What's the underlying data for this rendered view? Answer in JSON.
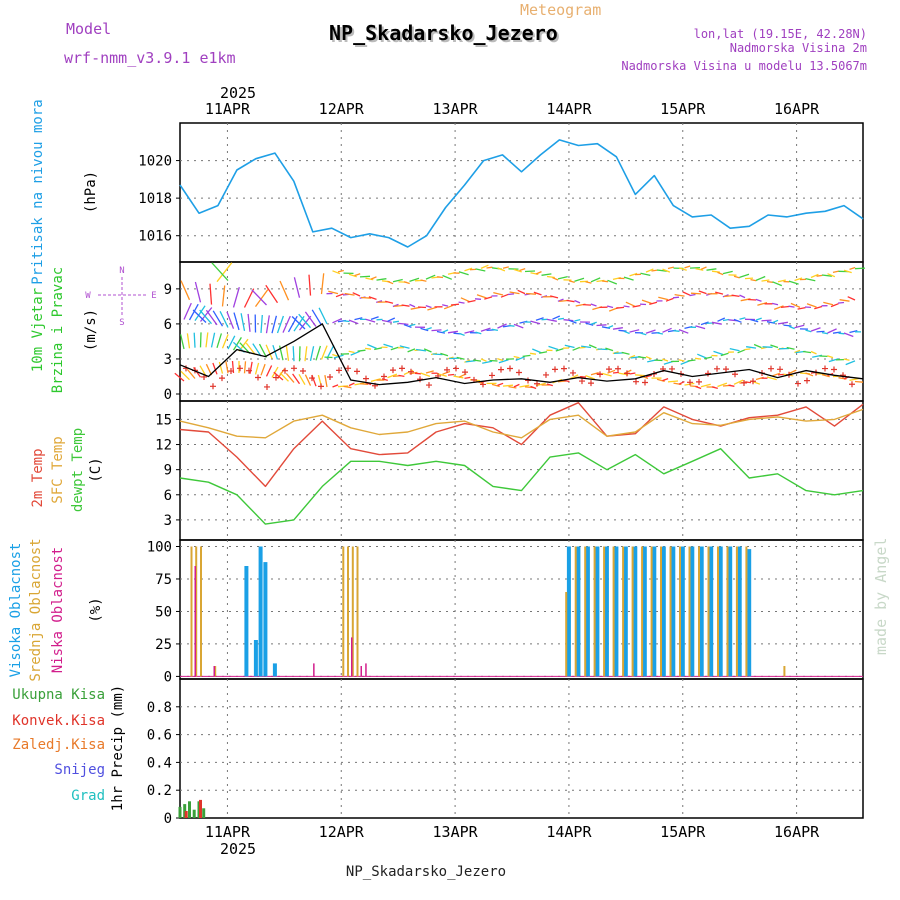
{
  "header": {
    "model_label": "Model",
    "model_value": "wrf-nmm_v3.9.1 e1km",
    "product": "Meteogram",
    "station": "NP_Skadarsko_Jezero",
    "coords": "lon,lat (19.15E, 42.28N)",
    "elevation": "Nadmorska Visina 2m",
    "model_elevation": "Nadmorska Visina u modelu 13.5067m",
    "year": "2025",
    "footer_station": "NP_Skadarsko_Jezero",
    "credit": "made by Angel"
  },
  "colors": {
    "pressure": "#1e9fe6",
    "wind_speed": "#000000",
    "gust": "#e0342a",
    "temp_2m": "#e24a3a",
    "temp_sfc": "#e0a83a",
    "dewpoint": "#3ec83a",
    "cloud_high": "#1aa0e6",
    "cloud_mid": "#d9a634",
    "cloud_low": "#d21e8c",
    "precip_total": "#3aa03a",
    "precip_conv": "#e0342a",
    "precip_froz": "#e87a2a",
    "snow": "#5050e0",
    "hail": "#20c0c0",
    "compass": "#b050d0",
    "title_orange": "#e8b070",
    "title_purple": "#a040c0",
    "credit": "#c8d8c8"
  },
  "x_axis": {
    "start": "2025-04-10T14:00",
    "end": "2025-04-16T14:00",
    "ticks": [
      {
        "date": "2025-04-11",
        "label": "11APR"
      },
      {
        "date": "2025-04-12",
        "label": "12APR"
      },
      {
        "date": "2025-04-13",
        "label": "13APR"
      },
      {
        "date": "2025-04-14",
        "label": "14APR"
      },
      {
        "date": "2025-04-15",
        "label": "15APR"
      },
      {
        "date": "2025-04-16",
        "label": "16APR"
      }
    ]
  },
  "panels": {
    "pressure": {
      "labels": [
        "Pritisak na nivou mora"
      ],
      "unit": "(hPa)",
      "ylim": [
        1014.6,
        1022.0
      ],
      "yticks": [
        1016,
        1018,
        1020
      ]
    },
    "wind": {
      "labels": [
        "10m Vjetar",
        "Brzina i Pravac"
      ],
      "unit": "(m/s)",
      "ylim": [
        -0.6,
        11.3
      ],
      "yticks": [
        0,
        3,
        6,
        9
      ],
      "compass": {
        "n": "N",
        "s": "S",
        "e": "E",
        "w": "W"
      }
    },
    "temp": {
      "labels": [
        "2m Temp",
        "SFC Temp",
        "dewpt Temp"
      ],
      "unit": "(C)",
      "ylim": [
        0.6,
        17.2
      ],
      "yticks": [
        3,
        6,
        9,
        12,
        15
      ]
    },
    "cloud": {
      "labels": [
        "Visoka Oblacnost",
        "Srednja Oblacnost",
        "Niska Oblacnost"
      ],
      "unit": "(%)",
      "ylim": [
        -2,
        105
      ],
      "yticks": [
        0,
        25,
        50,
        75,
        100
      ]
    },
    "precip": {
      "labels": [
        "Ukupna Kisa",
        "Konvek.Kisa",
        "Zaledj.Kisa",
        "Snijeg",
        "Grad"
      ],
      "unit": "1hr Precip (mm)",
      "ylim": [
        0,
        1.0
      ],
      "yticks": [
        0,
        0.2,
        0.4,
        0.6,
        0.8
      ]
    }
  },
  "chart_data": [
    {
      "type": "line",
      "panel": "pressure",
      "ylabel": "Pritisak na nivou mora (hPa)",
      "x": [
        "2025-04-10T14:00",
        "2025-04-10T18:00",
        "2025-04-10T22:00",
        "2025-04-11T02:00",
        "2025-04-11T06:00",
        "2025-04-11T10:00",
        "2025-04-11T14:00",
        "2025-04-11T18:00",
        "2025-04-11T22:00",
        "2025-04-12T02:00",
        "2025-04-12T06:00",
        "2025-04-12T10:00",
        "2025-04-12T14:00",
        "2025-04-12T18:00",
        "2025-04-12T22:00",
        "2025-04-13T02:00",
        "2025-04-13T06:00",
        "2025-04-13T10:00",
        "2025-04-13T14:00",
        "2025-04-13T18:00",
        "2025-04-13T22:00",
        "2025-04-14T02:00",
        "2025-04-14T06:00",
        "2025-04-14T10:00",
        "2025-04-14T14:00",
        "2025-04-14T18:00",
        "2025-04-14T22:00",
        "2025-04-15T02:00",
        "2025-04-15T06:00",
        "2025-04-15T10:00",
        "2025-04-15T14:00",
        "2025-04-15T18:00",
        "2025-04-15T22:00",
        "2025-04-16T02:00",
        "2025-04-16T06:00",
        "2025-04-16T10:00",
        "2025-04-16T14:00"
      ],
      "series": [
        {
          "values": [
            1018.7,
            1017.2,
            1017.6,
            1019.5,
            1020.1,
            1020.4,
            1018.9,
            1016.2,
            1016.4,
            1015.9,
            1016.1,
            1015.9,
            1015.4,
            1016.0,
            1017.5,
            1018.7,
            1020.0,
            1020.3,
            1019.4,
            1020.3,
            1021.1,
            1020.8,
            1020.9,
            1020.2,
            1018.2,
            1019.2,
            1017.6,
            1017.0,
            1017.1,
            1016.4,
            1016.5,
            1017.1,
            1017.0,
            1017.2,
            1017.3,
            1017.6,
            1016.9
          ]
        }
      ]
    },
    {
      "type": "line",
      "panel": "wind",
      "ylabel": "10m Vjetar Brzina i Pravac (m/s)",
      "x": [
        "2025-04-10T14:00",
        "2025-04-10T20:00",
        "2025-04-11T02:00",
        "2025-04-11T08:00",
        "2025-04-11T14:00",
        "2025-04-11T20:00",
        "2025-04-12T02:00",
        "2025-04-12T08:00",
        "2025-04-12T14:00",
        "2025-04-12T20:00",
        "2025-04-13T02:00",
        "2025-04-13T08:00",
        "2025-04-13T14:00",
        "2025-04-13T20:00",
        "2025-04-14T02:00",
        "2025-04-14T08:00",
        "2025-04-14T14:00",
        "2025-04-14T20:00",
        "2025-04-15T02:00",
        "2025-04-15T08:00",
        "2025-04-15T14:00",
        "2025-04-15T20:00",
        "2025-04-16T02:00",
        "2025-04-16T08:00",
        "2025-04-16T14:00"
      ],
      "series": [
        {
          "name": "speed",
          "values": [
            2.5,
            1.5,
            3.8,
            3.2,
            4.5,
            6.0,
            1.2,
            0.8,
            1.0,
            1.4,
            0.9,
            1.2,
            1.3,
            1.0,
            1.4,
            1.1,
            1.3,
            2.0,
            1.5,
            1.8,
            2.1,
            1.4,
            2.0,
            1.6,
            1.3
          ]
        }
      ]
    },
    {
      "type": "line",
      "panel": "temp",
      "ylabel": "(C)",
      "x": [
        "2025-04-10T14:00",
        "2025-04-10T20:00",
        "2025-04-11T02:00",
        "2025-04-11T08:00",
        "2025-04-11T14:00",
        "2025-04-11T20:00",
        "2025-04-12T02:00",
        "2025-04-12T08:00",
        "2025-04-12T14:00",
        "2025-04-12T20:00",
        "2025-04-13T02:00",
        "2025-04-13T08:00",
        "2025-04-13T14:00",
        "2025-04-13T20:00",
        "2025-04-14T02:00",
        "2025-04-14T08:00",
        "2025-04-14T14:00",
        "2025-04-14T20:00",
        "2025-04-15T02:00",
        "2025-04-15T08:00",
        "2025-04-15T14:00",
        "2025-04-15T20:00",
        "2025-04-16T02:00",
        "2025-04-16T08:00",
        "2025-04-16T14:00"
      ],
      "series": [
        {
          "name": "2m Temp",
          "values": [
            13.8,
            13.5,
            10.5,
            7.0,
            11.5,
            14.8,
            11.5,
            10.8,
            11.0,
            13.5,
            14.5,
            14.0,
            12.0,
            15.5,
            17.0,
            13.0,
            13.3,
            16.5,
            15.0,
            14.2,
            15.2,
            15.5,
            16.5,
            14.2,
            16.8
          ]
        },
        {
          "name": "SFC Temp",
          "values": [
            14.8,
            14.0,
            13.0,
            12.8,
            14.8,
            15.5,
            14.0,
            13.2,
            13.5,
            14.5,
            14.8,
            13.5,
            12.8,
            15.0,
            15.5,
            13.0,
            13.5,
            15.8,
            14.5,
            14.3,
            15.0,
            15.3,
            14.8,
            15.0,
            16.2
          ]
        },
        {
          "name": "dewpt Temp",
          "values": [
            8.0,
            7.5,
            6.0,
            2.5,
            3.0,
            7.0,
            10.0,
            10.0,
            9.5,
            10.0,
            9.5,
            7.0,
            6.5,
            10.5,
            11.0,
            9.0,
            10.8,
            8.5,
            10.0,
            11.5,
            8.0,
            8.5,
            6.5,
            6.0,
            6.5
          ]
        }
      ]
    },
    {
      "type": "bar",
      "panel": "cloud",
      "ylabel": "(%)",
      "series": [
        {
          "name": "Visoka Oblacnost",
          "x": [
            "2025-04-11T04:00",
            "2025-04-11T06:00",
            "2025-04-11T07:00",
            "2025-04-11T08:00",
            "2025-04-11T10:00",
            "2025-04-14T00:00",
            "2025-04-14T02:00",
            "2025-04-14T04:00",
            "2025-04-14T06:00",
            "2025-04-14T08:00",
            "2025-04-14T10:00",
            "2025-04-14T12:00",
            "2025-04-14T14:00",
            "2025-04-14T16:00",
            "2025-04-14T18:00",
            "2025-04-14T20:00",
            "2025-04-14T22:00",
            "2025-04-15T00:00",
            "2025-04-15T02:00",
            "2025-04-15T04:00",
            "2025-04-15T06:00",
            "2025-04-15T08:00",
            "2025-04-15T10:00",
            "2025-04-15T12:00",
            "2025-04-15T14:00"
          ],
          "values": [
            85,
            28,
            100,
            88,
            10,
            100,
            100,
            100,
            100,
            100,
            100,
            100,
            100,
            100,
            100,
            100,
            100,
            100,
            100,
            100,
            100,
            100,
            100,
            100,
            98
          ]
        },
        {
          "name": "Srednja Oblacnost",
          "x": [
            "2025-04-10T16:00",
            "2025-04-10T17:00",
            "2025-04-10T18:00",
            "2025-04-10T21:00",
            "2025-04-12T00:00",
            "2025-04-12T01:00",
            "2025-04-12T02:00",
            "2025-04-12T03:00",
            "2025-04-13T23:00",
            "2025-04-14T01:00",
            "2025-04-14T03:00",
            "2025-04-14T05:00",
            "2025-04-14T07:00",
            "2025-04-14T09:00",
            "2025-04-14T11:00",
            "2025-04-14T13:00",
            "2025-04-14T15:00",
            "2025-04-14T17:00",
            "2025-04-14T19:00",
            "2025-04-14T21:00",
            "2025-04-14T23:00",
            "2025-04-15T01:00",
            "2025-04-15T03:00",
            "2025-04-15T05:00",
            "2025-04-15T07:00",
            "2025-04-15T09:00",
            "2025-04-15T11:00",
            "2025-04-15T13:00",
            "2025-04-15T21:00"
          ],
          "values": [
            100,
            100,
            100,
            8,
            100,
            100,
            100,
            100,
            65,
            100,
            100,
            100,
            100,
            100,
            100,
            100,
            100,
            100,
            100,
            100,
            100,
            100,
            100,
            100,
            100,
            100,
            100,
            100,
            8
          ]
        },
        {
          "name": "Niska Oblacnost",
          "x": [
            "2025-04-10T17:00",
            "2025-04-10T21:00",
            "2025-04-11T18:00",
            "2025-04-12T02:00",
            "2025-04-12T04:00",
            "2025-04-12T05:00"
          ],
          "values": [
            85,
            8,
            10,
            30,
            8,
            10
          ]
        }
      ]
    },
    {
      "type": "bar",
      "panel": "precip",
      "ylabel": "1hr Precip (mm)",
      "series": [
        {
          "name": "Ukupna Kisa",
          "x": [
            "2025-04-10T14:00",
            "2025-04-10T15:00",
            "2025-04-10T16:00",
            "2025-04-10T17:00",
            "2025-04-10T18:00",
            "2025-04-10T19:00"
          ],
          "values": [
            0.08,
            0.1,
            0.12,
            0.06,
            0.12,
            0.07
          ]
        },
        {
          "name": "Konvek.Kisa",
          "x": [
            "2025-04-10T15:00",
            "2025-04-10T18:00"
          ],
          "values": [
            0.05,
            0.13
          ]
        },
        {
          "name": "Zaledj.Kisa",
          "x": [],
          "values": []
        },
        {
          "name": "Snijeg",
          "x": [],
          "values": []
        },
        {
          "name": "Grad",
          "x": [],
          "values": []
        }
      ]
    }
  ]
}
